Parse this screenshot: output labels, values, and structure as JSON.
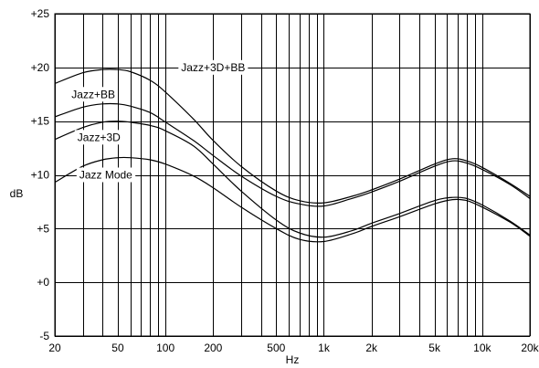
{
  "chart_data": {
    "type": "line",
    "xlabel": "Hz",
    "ylabel": "dB",
    "xscale": "log",
    "xlim": [
      20,
      20000
    ],
    "ylim": [
      -5,
      25
    ],
    "grid": true,
    "x_tick_labels": [
      {
        "value": 20,
        "label": "20"
      },
      {
        "value": 50,
        "label": "50"
      },
      {
        "value": 100,
        "label": "100"
      },
      {
        "value": 200,
        "label": "200"
      },
      {
        "value": 500,
        "label": "500"
      },
      {
        "value": 1000,
        "label": "1k"
      },
      {
        "value": 2000,
        "label": "2k"
      },
      {
        "value": 5000,
        "label": "5k"
      },
      {
        "value": 10000,
        "label": "10k"
      },
      {
        "value": 20000,
        "label": "20k"
      }
    ],
    "y_tick_labels": [
      {
        "value": 25,
        "label": "+25"
      },
      {
        "value": 20,
        "label": "+20"
      },
      {
        "value": 15,
        "label": "+15"
      },
      {
        "value": 10,
        "label": "+10"
      },
      {
        "value": 5,
        "label": "+5"
      },
      {
        "value": 0,
        "label": "+0"
      },
      {
        "value": -5,
        "label": "-5"
      }
    ],
    "series": [
      {
        "name": "Jazz+3D+BB",
        "label_at": {
          "x": 200,
          "y": 20.0
        },
        "points": [
          [
            20,
            18.5
          ],
          [
            30,
            19.5
          ],
          [
            40,
            19.8
          ],
          [
            50,
            19.8
          ],
          [
            60,
            19.6
          ],
          [
            80,
            18.8
          ],
          [
            100,
            17.7
          ],
          [
            150,
            15.2
          ],
          [
            200,
            13.2
          ],
          [
            300,
            10.8
          ],
          [
            500,
            8.5
          ],
          [
            700,
            7.6
          ],
          [
            1000,
            7.4
          ],
          [
            1500,
            8.0
          ],
          [
            2000,
            8.6
          ],
          [
            3000,
            9.6
          ],
          [
            5000,
            11.0
          ],
          [
            6500,
            11.5
          ],
          [
            8000,
            11.3
          ],
          [
            10000,
            10.7
          ],
          [
            15000,
            9.2
          ],
          [
            20000,
            8.0
          ]
        ]
      },
      {
        "name": "Jazz+BB",
        "label_at": {
          "x": 35,
          "y": 17.5
        },
        "points": [
          [
            20,
            15.4
          ],
          [
            30,
            16.3
          ],
          [
            40,
            16.6
          ],
          [
            50,
            16.6
          ],
          [
            60,
            16.4
          ],
          [
            80,
            15.8
          ],
          [
            100,
            14.9
          ],
          [
            150,
            13.2
          ],
          [
            200,
            11.8
          ],
          [
            300,
            9.9
          ],
          [
            500,
            8.0
          ],
          [
            700,
            7.3
          ],
          [
            1000,
            7.1
          ],
          [
            1500,
            7.8
          ],
          [
            2000,
            8.4
          ],
          [
            3000,
            9.4
          ],
          [
            5000,
            10.8
          ],
          [
            6500,
            11.3
          ],
          [
            8000,
            11.1
          ],
          [
            10000,
            10.5
          ],
          [
            15000,
            9.1
          ],
          [
            20000,
            7.8
          ]
        ]
      },
      {
        "name": "Jazz+3D",
        "label_at": {
          "x": 38,
          "y": 13.5
        },
        "points": [
          [
            20,
            13.3
          ],
          [
            30,
            14.4
          ],
          [
            40,
            14.9
          ],
          [
            50,
            15.0
          ],
          [
            60,
            14.9
          ],
          [
            80,
            14.6
          ],
          [
            100,
            14.1
          ],
          [
            150,
            12.7
          ],
          [
            200,
            11.0
          ],
          [
            300,
            8.5
          ],
          [
            500,
            5.8
          ],
          [
            700,
            4.6
          ],
          [
            1000,
            4.2
          ],
          [
            1500,
            4.8
          ],
          [
            2000,
            5.5
          ],
          [
            3000,
            6.4
          ],
          [
            5000,
            7.6
          ],
          [
            6500,
            7.9
          ],
          [
            8000,
            7.8
          ],
          [
            10000,
            7.2
          ],
          [
            15000,
            5.7
          ],
          [
            20000,
            4.4
          ]
        ]
      },
      {
        "name": "Jazz Mode",
        "label_at": {
          "x": 42,
          "y": 10.0
        },
        "points": [
          [
            20,
            9.3
          ],
          [
            30,
            10.8
          ],
          [
            40,
            11.4
          ],
          [
            50,
            11.6
          ],
          [
            60,
            11.6
          ],
          [
            80,
            11.4
          ],
          [
            100,
            11.0
          ],
          [
            150,
            9.9
          ],
          [
            200,
            8.8
          ],
          [
            300,
            7.0
          ],
          [
            500,
            5.0
          ],
          [
            700,
            4.0
          ],
          [
            1000,
            3.8
          ],
          [
            1500,
            4.5
          ],
          [
            2000,
            5.2
          ],
          [
            3000,
            6.1
          ],
          [
            5000,
            7.3
          ],
          [
            6500,
            7.7
          ],
          [
            8000,
            7.6
          ],
          [
            10000,
            7.0
          ],
          [
            15000,
            5.6
          ],
          [
            20000,
            4.3
          ]
        ]
      }
    ]
  }
}
